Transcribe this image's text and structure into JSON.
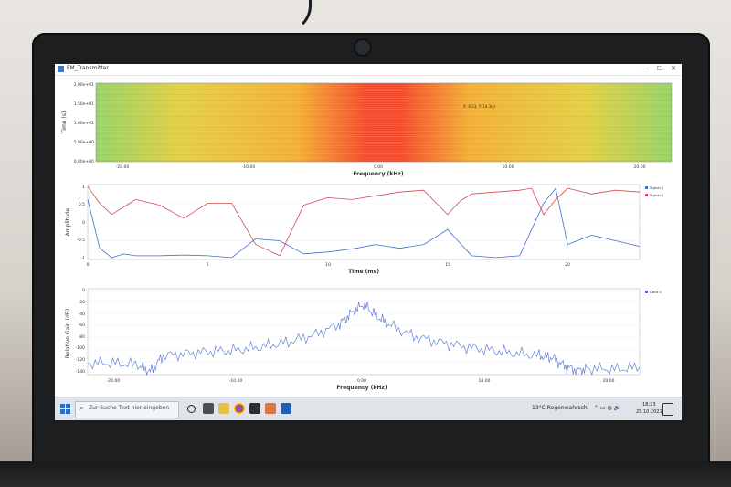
{
  "window": {
    "title": "FM_Transmitter",
    "minimize": "—",
    "maximize": "☐",
    "close": "✕"
  },
  "spectrogram": {
    "ylabel": "Time (s)",
    "xlabel": "Frequency (kHz)",
    "y_ticks": [
      "2.00e+01",
      "1.50e+01",
      "1.00e+01",
      "5.00e+00",
      "0.00e+00"
    ],
    "x_ticks": [
      "-20.00",
      "-10.00",
      "0.00",
      "10.00",
      "20.00"
    ],
    "cursor_readout": "X: 6.53, Y: 14.3(s)"
  },
  "time_plot": {
    "ylabel": "Amplitude",
    "xlabel": "Time (ms)",
    "y_ticks": [
      "1",
      "0.5",
      "0",
      "-0.5",
      "-1"
    ],
    "x_ticks": [
      "0",
      "5",
      "10",
      "15",
      "20"
    ],
    "legend": [
      {
        "name": "Signal 1",
        "color": "#3f6fd1"
      },
      {
        "name": "Signal 2",
        "color": "#d64a55"
      }
    ]
  },
  "freq_plot": {
    "ylabel": "Relative Gain (dB)",
    "xlabel": "Frequency (kHz)",
    "y_ticks": [
      "0",
      "-20",
      "-40",
      "-60",
      "-80",
      "-100",
      "-120",
      "-140"
    ],
    "x_ticks": [
      "-20.00",
      "-10.00",
      "0.00",
      "10.00",
      "20.00"
    ],
    "legend": [
      {
        "name": "Data 0",
        "color": "#4a6fd1"
      }
    ]
  },
  "taskbar": {
    "search_placeholder": "Zur Suche Text hier eingeben",
    "weather": "13°C  Regenwahrsch.",
    "time": "18:23",
    "date": "25.10.2021",
    "icons": [
      "task-view-icon",
      "file-explorer-icon",
      "chrome-icon",
      "terminal-icon",
      "matlab-icon",
      "outlook-icon"
    ]
  },
  "chart_data": [
    {
      "type": "heatmap",
      "title": "",
      "xlabel": "Frequency (kHz)",
      "ylabel": "Time (s)",
      "xlim": [
        -22,
        22
      ],
      "ylim": [
        0,
        20
      ],
      "colormap": [
        "#3fc7c0",
        "#9ad36a",
        "#e6d24a",
        "#f39a3a",
        "#ee3b2c"
      ],
      "profile_center_kHz": 0,
      "intensity_peak_at": 0
    },
    {
      "type": "line",
      "title": "",
      "xlabel": "Time (ms)",
      "ylabel": "Amplitude",
      "xlim": [
        0,
        23
      ],
      "ylim": [
        -1,
        1
      ],
      "series": [
        {
          "name": "Signal 1",
          "color": "#3f6fd1",
          "x": [
            0,
            0.5,
            1,
            1.5,
            2,
            3,
            4,
            5,
            6,
            7,
            8,
            9,
            10,
            11,
            12,
            13,
            14,
            15,
            15.5,
            16,
            17,
            18,
            18.5,
            19,
            19.5,
            20,
            21,
            22,
            23
          ],
          "y": [
            0.6,
            -0.7,
            -0.95,
            -0.85,
            -0.9,
            -0.9,
            -0.88,
            -0.9,
            -0.95,
            -0.45,
            -0.5,
            -0.85,
            -0.8,
            -0.72,
            -0.6,
            -0.7,
            -0.6,
            -0.2,
            -0.55,
            -0.9,
            -0.95,
            -0.9,
            -0.2,
            0.5,
            0.9,
            -0.6,
            -0.35,
            -0.5,
            -0.65
          ]
        },
        {
          "name": "Signal 2",
          "color": "#d64a55",
          "x": [
            0,
            0.5,
            1,
            1.5,
            2,
            3,
            4,
            5,
            6,
            7,
            8,
            9,
            10,
            11,
            12,
            13,
            14,
            15,
            15.5,
            16,
            17,
            18,
            18.5,
            19,
            19.5,
            20,
            21,
            22,
            23
          ],
          "y": [
            0.95,
            0.5,
            0.2,
            0.4,
            0.6,
            0.45,
            0.1,
            0.5,
            0.5,
            -0.6,
            -0.9,
            0.45,
            0.65,
            0.6,
            0.7,
            0.8,
            0.85,
            0.2,
            0.55,
            0.75,
            0.8,
            0.85,
            0.9,
            0.2,
            0.6,
            0.9,
            0.75,
            0.85,
            0.8
          ]
        }
      ]
    },
    {
      "type": "line",
      "title": "",
      "xlabel": "Frequency (kHz)",
      "ylabel": "Relative Gain (dB)",
      "xlim": [
        -22,
        22
      ],
      "ylim": [
        -145,
        5
      ],
      "series": [
        {
          "name": "Data 0",
          "color": "#4a6fd1",
          "x": [
            -22,
            -20,
            -18,
            -17,
            -16,
            -14,
            -12,
            -10,
            -8,
            -6,
            -4,
            -2,
            -1,
            0,
            1,
            2,
            4,
            6,
            8,
            10,
            12,
            14,
            15,
            16,
            17,
            18,
            20,
            22
          ],
          "y": [
            -125,
            -125,
            -128,
            -140,
            -112,
            -108,
            -104,
            -102,
            -96,
            -88,
            -76,
            -58,
            -38,
            -22,
            -42,
            -58,
            -78,
            -88,
            -96,
            -102,
            -108,
            -112,
            -115,
            -130,
            -138,
            -134,
            -136,
            -132
          ]
        }
      ]
    }
  ]
}
